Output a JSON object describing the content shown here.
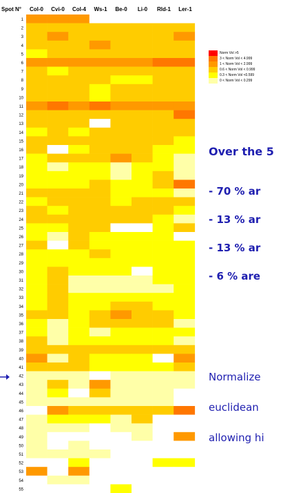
{
  "chart_data": {
    "type": "heatmap",
    "corner_label": "Spot N°",
    "columns": [
      "Col-0",
      "Cvi-0",
      "Col-4",
      "Ws-1",
      "Be-0",
      "Li-0",
      "Rld-1",
      "Ler-1"
    ],
    "rows": [
      "1",
      "2",
      "3",
      "4",
      "5",
      "6",
      "7",
      "8",
      "9",
      "10",
      "11",
      "12",
      "13",
      "14",
      "15",
      "16",
      "17",
      "18",
      "19",
      "20",
      "21",
      "22",
      "23",
      "24",
      "25",
      "26",
      "27",
      "28",
      "29",
      "30",
      "31",
      "32",
      "33",
      "34",
      "35",
      "36",
      "37",
      "38",
      "39",
      "40",
      "41",
      "42",
      "43",
      "44",
      "45",
      "46",
      "47",
      "48",
      "49",
      "50",
      "51",
      "52",
      "53",
      "54",
      "55"
    ],
    "levels": [
      0,
      1,
      2,
      3,
      4,
      5
    ],
    "palette": [
      "#ffffff",
      "#ffffa8",
      "#ffff00",
      "#ffcc00",
      "#ff9900",
      "#ff7700",
      "#ff0000"
    ],
    "palette_note": "index 0 = blank cell (no value); index 1..6 correspond to legend classes 0-0.299 ... >5",
    "values": [
      [
        4,
        4,
        4,
        0,
        0,
        0,
        0,
        0
      ],
      [
        3,
        3,
        3,
        3,
        3,
        3,
        3,
        3
      ],
      [
        3,
        4,
        3,
        3,
        3,
        3,
        3,
        4
      ],
      [
        3,
        3,
        3,
        4,
        3,
        3,
        3,
        3
      ],
      [
        2,
        3,
        3,
        3,
        3,
        3,
        3,
        3
      ],
      [
        4,
        4,
        4,
        4,
        4,
        4,
        5,
        5
      ],
      [
        3,
        2,
        3,
        3,
        3,
        3,
        3,
        3
      ],
      [
        3,
        3,
        3,
        3,
        2,
        2,
        3,
        3
      ],
      [
        3,
        3,
        3,
        2,
        3,
        3,
        3,
        3
      ],
      [
        3,
        3,
        3,
        2,
        3,
        3,
        3,
        3
      ],
      [
        4,
        5,
        4,
        5,
        4,
        4,
        4,
        4
      ],
      [
        3,
        3,
        3,
        3,
        3,
        3,
        3,
        5
      ],
      [
        3,
        3,
        3,
        0,
        3,
        3,
        3,
        3
      ],
      [
        2,
        3,
        2,
        3,
        3,
        3,
        3,
        3
      ],
      [
        3,
        3,
        3,
        3,
        3,
        3,
        3,
        2
      ],
      [
        3,
        0,
        2,
        3,
        3,
        3,
        2,
        2
      ],
      [
        2,
        3,
        3,
        3,
        4,
        3,
        2,
        1
      ],
      [
        2,
        1,
        2,
        2,
        1,
        2,
        2,
        1
      ],
      [
        2,
        2,
        2,
        2,
        1,
        2,
        3,
        1
      ],
      [
        2,
        2,
        2,
        3,
        2,
        2,
        3,
        5
      ],
      [
        3,
        3,
        3,
        3,
        2,
        2,
        2,
        1
      ],
      [
        2,
        3,
        3,
        3,
        2,
        3,
        3,
        3
      ],
      [
        3,
        2,
        3,
        3,
        3,
        3,
        3,
        2
      ],
      [
        3,
        3,
        3,
        3,
        3,
        3,
        2,
        1
      ],
      [
        2,
        2,
        3,
        3,
        0,
        0,
        2,
        3
      ],
      [
        2,
        1,
        3,
        2,
        2,
        2,
        2,
        0
      ],
      [
        3,
        0,
        3,
        2,
        2,
        2,
        2,
        2
      ],
      [
        2,
        2,
        2,
        3,
        2,
        2,
        2,
        2
      ],
      [
        2,
        2,
        2,
        2,
        2,
        2,
        2,
        2
      ],
      [
        2,
        3,
        2,
        2,
        2,
        0,
        2,
        2
      ],
      [
        2,
        3,
        1,
        1,
        1,
        1,
        2,
        2
      ],
      [
        2,
        3,
        1,
        1,
        1,
        1,
        1,
        2
      ],
      [
        2,
        3,
        2,
        2,
        2,
        2,
        2,
        2
      ],
      [
        2,
        3,
        2,
        2,
        3,
        3,
        2,
        2
      ],
      [
        3,
        3,
        2,
        3,
        4,
        3,
        3,
        2
      ],
      [
        2,
        1,
        2,
        3,
        3,
        3,
        3,
        1
      ],
      [
        2,
        1,
        2,
        1,
        2,
        2,
        2,
        2
      ],
      [
        3,
        1,
        2,
        2,
        2,
        2,
        2,
        1
      ],
      [
        3,
        3,
        3,
        3,
        3,
        3,
        3,
        3
      ],
      [
        4,
        1,
        3,
        2,
        2,
        2,
        0,
        4
      ],
      [
        3,
        3,
        3,
        2,
        2,
        2,
        2,
        3
      ],
      [
        1,
        1,
        1,
        0,
        1,
        1,
        1,
        1
      ],
      [
        1,
        3,
        1,
        4,
        1,
        1,
        1,
        1
      ],
      [
        1,
        2,
        0,
        3,
        1,
        1,
        1,
        0
      ],
      [
        1,
        1,
        1,
        1,
        1,
        1,
        1,
        0
      ],
      [
        0,
        4,
        3,
        3,
        3,
        3,
        3,
        5
      ],
      [
        1,
        2,
        2,
        2,
        1,
        3,
        0,
        0
      ],
      [
        1,
        1,
        1,
        0,
        1,
        1,
        0,
        0
      ],
      [
        1,
        0,
        0,
        0,
        0,
        1,
        0,
        4
      ],
      [
        1,
        0,
        1,
        0,
        0,
        0,
        0,
        0
      ],
      [
        1,
        1,
        1,
        1,
        0,
        0,
        0,
        0
      ],
      [
        0,
        0,
        2,
        0,
        0,
        0,
        2,
        2
      ],
      [
        4,
        0,
        4,
        0,
        0,
        0,
        0,
        0
      ],
      [
        0,
        1,
        1,
        0,
        0,
        0,
        0,
        0
      ],
      [
        0,
        0,
        0,
        0,
        2,
        0,
        0,
        0
      ]
    ],
    "legend": {
      "items": [
        {
          "label": "Norm Vol >5",
          "color": "#ff0000"
        },
        {
          "label": "3 < Norm Vol < 4.999",
          "color": "#ff7700"
        },
        {
          "label": "1 < Norm Vol < 2.999",
          "color": "#ff9900"
        },
        {
          "label": "0.6 < Norm Vol < 0.999",
          "color": "#ffcc00"
        },
        {
          "label": "0.3 < Norm Vol <0.599",
          "color": "#ffff00"
        },
        {
          "label": "0 < Norm Vol < 0.299",
          "color": "#ffffa8"
        }
      ]
    }
  },
  "side_text": {
    "heading": "Over the 5",
    "bullets": [
      "- 70 % ar",
      "- 13 % ar",
      "- 13 % ar",
      "- 6 % are"
    ],
    "footer": [
      "Normalize",
      "euclidean",
      "allowing hi"
    ]
  },
  "arrow_color": "#1f1fb0"
}
